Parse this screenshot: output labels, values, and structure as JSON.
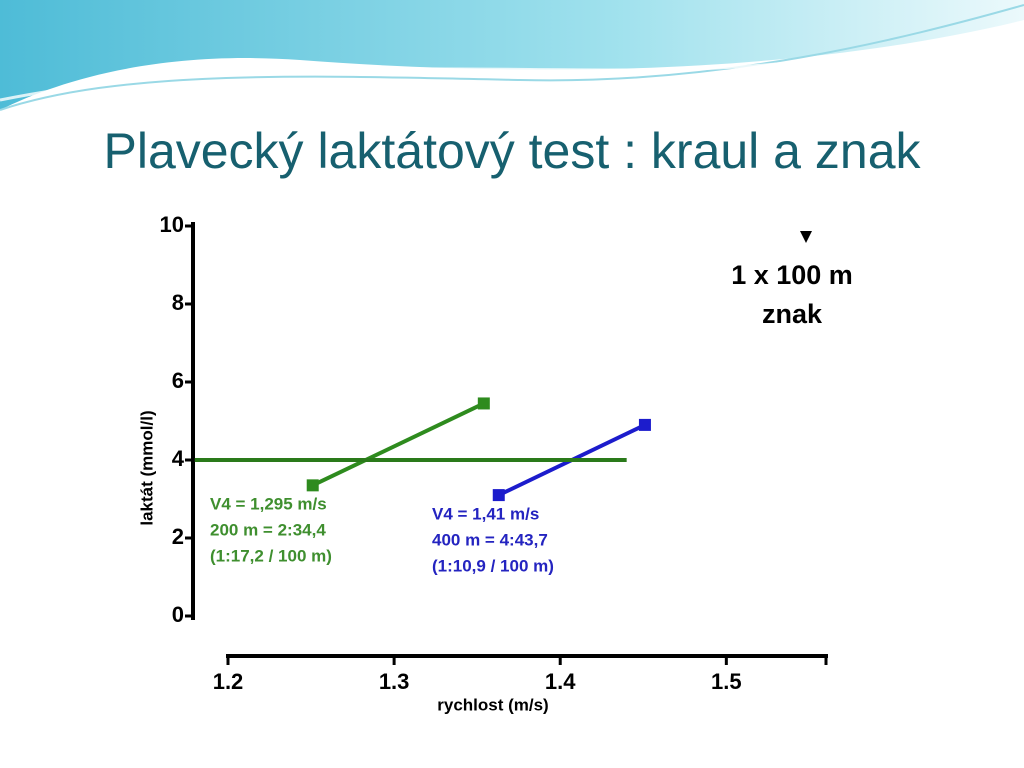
{
  "slide_title": "Plavecký laktátový test : kraul a znak",
  "chart_data": {
    "type": "line",
    "xlabel": "rychlost (m/s)",
    "ylabel": "laktát (mmol/l)",
    "xlim": [
      1.2,
      1.56
    ],
    "ylim": [
      0,
      10
    ],
    "xticks": [
      1.2,
      1.3,
      1.4,
      1.5
    ],
    "yticks": [
      0,
      2,
      4,
      6,
      8,
      10
    ],
    "series": [
      {
        "color": "#2e8b1e",
        "x": [
          1.251,
          1.354
        ],
        "values": [
          3.35,
          5.45
        ],
        "markers": true
      },
      {
        "color": "#1c1ccc",
        "x": [
          1.363,
          1.451
        ],
        "values": [
          3.1,
          4.9
        ],
        "markers": true
      },
      {
        "color": "#2a7a1a",
        "x": [
          1.18,
          1.44
        ],
        "values": [
          4,
          4
        ],
        "markers": false
      }
    ],
    "annotations": [
      {
        "color": "#3f8f2f",
        "lines": [
          "V4 = 1,295 m/s",
          "200 m = 2:34,4",
          "(1:17,2 / 100 m)"
        ]
      },
      {
        "color": "#2424c0",
        "lines": [
          "V4 = 1,41 m/s",
          "400 m = 4:43,7",
          "(1:10,9 / 100 m)"
        ]
      },
      {
        "color": "#000000",
        "lines": [
          "1 x 100 m",
          "znak"
        ]
      }
    ]
  }
}
